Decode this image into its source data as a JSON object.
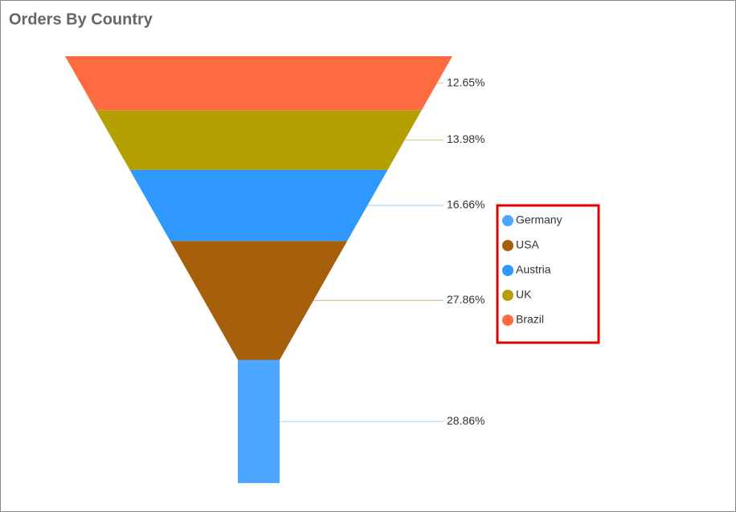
{
  "chart_data": {
    "type": "funnel",
    "title": "Orders By Country",
    "categories": [
      "Germany",
      "USA",
      "Austria",
      "UK",
      "Brazil"
    ],
    "values": [
      28.86,
      27.86,
      16.66,
      13.98,
      12.65
    ],
    "value_labels": [
      "28.86%",
      "27.86%",
      "16.66%",
      "13.98%",
      "12.65%"
    ],
    "colors": [
      "#4da6ff",
      "#a65f0a",
      "#2e98ff",
      "#b4a000",
      "#ff6b40"
    ],
    "legend": "right"
  }
}
